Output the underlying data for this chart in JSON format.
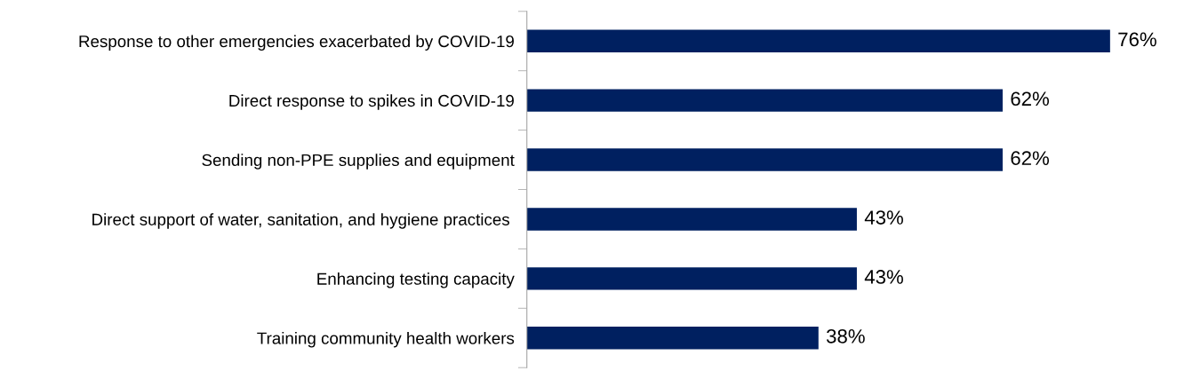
{
  "chart_data": {
    "type": "bar",
    "orientation": "horizontal",
    "categories": [
      "Response to other emergencies exacerbated by COVID-19",
      "Direct response to spikes in COVID-19",
      "Sending non-PPE supplies and equipment",
      "Direct support of water, sanitation, and hygiene practices ",
      "Enhancing testing capacity",
      "Training community health workers"
    ],
    "values": [
      76,
      62,
      62,
      43,
      43,
      38
    ],
    "value_labels": [
      "76%",
      "62%",
      "62%",
      "43%",
      "43%",
      "38%"
    ],
    "color": "#002060",
    "grid": false,
    "legend": false,
    "tick_labels": "y"
  }
}
